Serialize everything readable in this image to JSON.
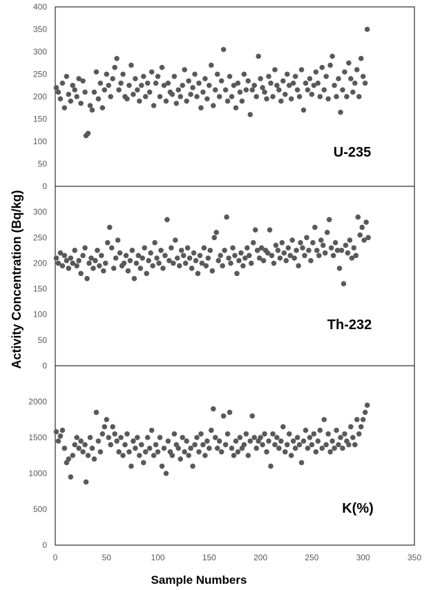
{
  "chart_data": {
    "type": "scatter",
    "ylabel": "Activity Concentration (Bq/kg)",
    "xlabel": "Sample Numbers",
    "xlim": [
      0,
      350
    ],
    "x_ticks": [
      "0",
      "50",
      "100",
      "150",
      "200",
      "250",
      "300",
      "350"
    ],
    "marker_color": "#595959",
    "panels": [
      {
        "label": "U-235",
        "ylim": [
          0,
          400
        ],
        "y_ticks": [
          "0",
          "50",
          "100",
          "150",
          "200",
          "250",
          "300",
          "350",
          "400"
        ],
        "series": [
          {
            "x": [
              1,
              3,
              5,
              7,
              9,
              11,
              13,
              15,
              17,
              19,
              21,
              23,
              25,
              27,
              29,
              30,
              32,
              34,
              36,
              38,
              40,
              42,
              44,
              46,
              48,
              50,
              52,
              54,
              56,
              58,
              60,
              62,
              64,
              66,
              68,
              70,
              72,
              74,
              76,
              78,
              80,
              82,
              84,
              86,
              88,
              90,
              92,
              94,
              96,
              98,
              100,
              102,
              104,
              106,
              108,
              110,
              112,
              114,
              116,
              118,
              120,
              122,
              124,
              126,
              128,
              130,
              132,
              134,
              136,
              138,
              140,
              142,
              144,
              146,
              148,
              150,
              152,
              154,
              156,
              158,
              160,
              162,
              164,
              166,
              168,
              170,
              172,
              174,
              176,
              178,
              180,
              182,
              184,
              186,
              188,
              190,
              192,
              194,
              196,
              198,
              200,
              202,
              204,
              206,
              208,
              210,
              212,
              214,
              216,
              218,
              220,
              222,
              224,
              226,
              228,
              230,
              232,
              234,
              236,
              238,
              240,
              242,
              244,
              246,
              248,
              250,
              252,
              254,
              256,
              258,
              260,
              262,
              264,
              266,
              268,
              270,
              272,
              274,
              276,
              278,
              280,
              282,
              284,
              286,
              288,
              290,
              292,
              294,
              296,
              298,
              300,
              302,
              304
            ],
            "y": [
              220,
              210,
              195,
              230,
              175,
              245,
              205,
              190,
              225,
              215,
              200,
              240,
              185,
              235,
              210,
              113,
              118,
              180,
              170,
              210,
              255,
              195,
              230,
              175,
              215,
              250,
              225,
              200,
              240,
              265,
              285,
              215,
              230,
              250,
              200,
              195,
              225,
              270,
              205,
              240,
              215,
              190,
              225,
              245,
              200,
              230,
              210,
              255,
              180,
              230,
              245,
              200,
              265,
              225,
              190,
              230,
              210,
              205,
              245,
              185,
              215,
              200,
              225,
              260,
              190,
              235,
              205,
              220,
              250,
              200,
              230,
              175,
              210,
              240,
              195,
              225,
              270,
              180,
              215,
              250,
              200,
              235,
              305,
              215,
              190,
              245,
              200,
              225,
              175,
              230,
              210,
              190,
              250,
              215,
              235,
              160,
              215,
              225,
              200,
              290,
              240,
              220,
              210,
              195,
              245,
              230,
              200,
              260,
              225,
              215,
              190,
              235,
              205,
              250,
              225,
              195,
              230,
              245,
              215,
              200,
              260,
              170,
              230,
              215,
              240,
              205,
              225,
              255,
              230,
              200,
              265,
              215,
              245,
              195,
              270,
              290,
              225,
              200,
              240,
              165,
              215,
              255,
              200,
              275,
              240,
              210,
              230,
              260,
              200,
              285,
              245,
              230,
              350
            ]
          }
        ]
      },
      {
        "label": "Th-232",
        "ylim": [
          0,
          350
        ],
        "y_ticks": [
          "0",
          "50",
          "100",
          "150",
          "200",
          "250",
          "300"
        ],
        "series": [
          {
            "x": [
              1,
              3,
              5,
              7,
              9,
              11,
              13,
              15,
              17,
              19,
              21,
              23,
              25,
              27,
              29,
              31,
              33,
              35,
              37,
              39,
              41,
              43,
              45,
              47,
              49,
              51,
              53,
              55,
              57,
              59,
              61,
              63,
              65,
              67,
              69,
              71,
              73,
              75,
              77,
              79,
              81,
              83,
              85,
              87,
              89,
              91,
              93,
              95,
              97,
              99,
              101,
              103,
              105,
              107,
              109,
              111,
              113,
              115,
              117,
              119,
              121,
              123,
              125,
              127,
              129,
              131,
              133,
              135,
              137,
              139,
              141,
              143,
              145,
              147,
              149,
              151,
              153,
              155,
              157,
              159,
              161,
              163,
              165,
              167,
              169,
              171,
              173,
              175,
              177,
              179,
              181,
              183,
              185,
              187,
              189,
              191,
              193,
              195,
              197,
              199,
              201,
              203,
              205,
              207,
              209,
              211,
              213,
              215,
              217,
              219,
              221,
              223,
              225,
              227,
              229,
              231,
              233,
              235,
              237,
              239,
              241,
              243,
              245,
              247,
              249,
              251,
              253,
              255,
              257,
              259,
              261,
              263,
              265,
              267,
              269,
              271,
              273,
              275,
              277,
              279,
              281,
              283,
              285,
              287,
              289,
              291,
              293,
              295,
              297,
              299,
              301,
              303,
              305
            ],
            "y": [
              210,
              200,
              220,
              195,
              215,
              205,
              190,
              210,
              200,
              225,
              195,
              205,
              180,
              215,
              230,
              170,
              200,
              210,
              190,
              205,
              225,
              195,
              215,
              185,
              200,
              240,
              270,
              230,
              190,
              210,
              245,
              220,
              195,
              200,
              215,
              185,
              205,
              225,
              170,
              200,
              215,
              190,
              210,
              230,
              180,
              205,
              220,
              195,
              240,
              210,
              200,
              225,
              190,
              215,
              285,
              205,
              230,
              200,
              245,
              210,
              195,
              225,
              215,
              200,
              230,
              210,
              190,
              220,
              205,
              180,
              215,
              200,
              230,
              195,
              210,
              225,
              185,
              250,
              260,
              205,
              215,
              195,
              225,
              290,
              210,
              200,
              230,
              215,
              180,
              205,
              220,
              195,
              210,
              230,
              215,
              200,
              240,
              265,
              225,
              210,
              230,
              205,
              225,
              220,
              265,
              215,
              200,
              235,
              225,
              210,
              240,
              220,
              205,
              230,
              215,
              245,
              210,
              225,
              195,
              240,
              230,
              215,
              250,
              225,
              205,
              240,
              270,
              225,
              215,
              245,
              235,
              220,
              260,
              285,
              230,
              215,
              240,
              225,
              190,
              225,
              160,
              235,
              220,
              245,
              210,
              230,
              215,
              290,
              255,
              270,
              245,
              280,
              250
            ]
          }
        ]
      },
      {
        "label": "K(%)",
        "ylim": [
          0,
          2500
        ],
        "y_ticks": [
          "0",
          "500",
          "1000",
          "1500",
          "2000"
        ],
        "series": [
          {
            "x": [
              1,
              3,
              5,
              7,
              9,
              11,
              13,
              15,
              17,
              19,
              21,
              23,
              25,
              27,
              29,
              30,
              32,
              34,
              36,
              38,
              40,
              42,
              44,
              46,
              48,
              50,
              52,
              54,
              56,
              58,
              60,
              62,
              64,
              66,
              68,
              70,
              72,
              74,
              76,
              78,
              80,
              82,
              84,
              86,
              88,
              90,
              92,
              94,
              96,
              98,
              100,
              102,
              104,
              106,
              108,
              110,
              112,
              114,
              116,
              118,
              120,
              122,
              124,
              126,
              128,
              130,
              132,
              134,
              136,
              138,
              140,
              142,
              144,
              146,
              148,
              150,
              152,
              154,
              156,
              158,
              160,
              162,
              164,
              166,
              168,
              170,
              172,
              174,
              176,
              178,
              180,
              182,
              184,
              186,
              188,
              190,
              192,
              194,
              196,
              198,
              200,
              202,
              204,
              206,
              208,
              210,
              212,
              214,
              216,
              218,
              220,
              222,
              224,
              226,
              228,
              230,
              232,
              234,
              236,
              238,
              240,
              242,
              244,
              246,
              248,
              250,
              252,
              254,
              256,
              258,
              260,
              262,
              264,
              266,
              268,
              270,
              272,
              274,
              276,
              278,
              280,
              282,
              284,
              286,
              288,
              290,
              292,
              294,
              296,
              298,
              300,
              302,
              304
            ],
            "y": [
              1580,
              1450,
              1520,
              1600,
              1350,
              1150,
              1200,
              950,
              1250,
              1400,
              1500,
              1350,
              1450,
              1300,
              1400,
              880,
              1250,
              1500,
              1350,
              1200,
              1850,
              1450,
              1300,
              1550,
              1650,
              1750,
              1500,
              1400,
              1650,
              1550,
              1450,
              1300,
              1500,
              1250,
              1400,
              1550,
              1300,
              1100,
              1450,
              1350,
              1500,
              1250,
              1400,
              1150,
              1300,
              1500,
              1350,
              1600,
              1250,
              1400,
              1300,
              1500,
              1100,
              1350,
              1000,
              1450,
              1300,
              1250,
              1550,
              1400,
              1350,
              1200,
              1500,
              1300,
              1450,
              1250,
              1350,
              1100,
              1400,
              1500,
              1300,
              1550,
              1400,
              1250,
              1450,
              1350,
              1600,
              1900,
              1500,
              1350,
              1450,
              1300,
              1800,
              1400,
              1550,
              1850,
              1350,
              1250,
              1450,
              1300,
              1500,
              1350,
              1400,
              1550,
              1250,
              1450,
              1800,
              1500,
              1350,
              1450,
              1500,
              1400,
              1550,
              1300,
              1450,
              1100,
              1550,
              1400,
              1500,
              1350,
              1450,
              1650,
              1300,
              1400,
              1550,
              1250,
              1450,
              1350,
              1500,
              1400,
              1150,
              1450,
              1600,
              1350,
              1500,
              1400,
              1550,
              1300,
              1450,
              1600,
              1350,
              1750,
              1400,
              1550,
              1300,
              1450,
              1350,
              1600,
              1400,
              1500,
              1350,
              1550,
              1450,
              1400,
              1650,
              1500,
              1400,
              1750,
              1550,
              1650,
              1750,
              1850,
              1950
            ]
          }
        ]
      }
    ]
  }
}
